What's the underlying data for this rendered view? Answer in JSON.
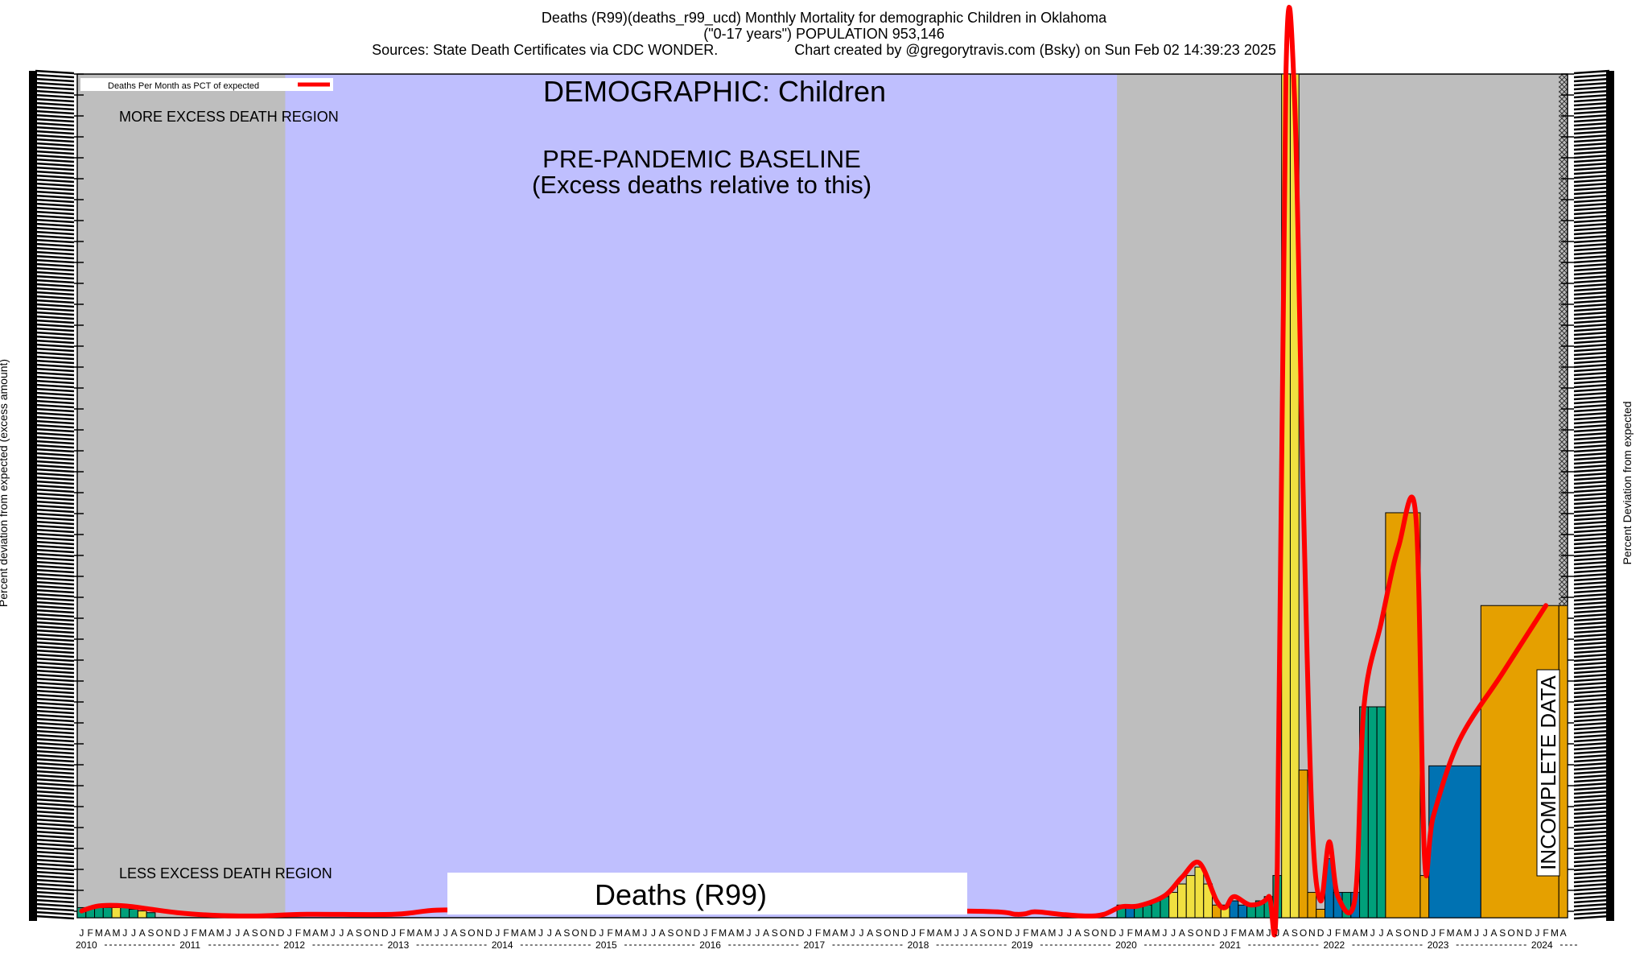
{
  "header": {
    "line1": "Deaths (R99)(deaths_r99_ucd) Monthly Mortality for demographic Children in Oklahoma",
    "line2": "(\"0-17 years\") POPULATION 953,146",
    "sources": "Sources: State Death Certificates via CDC WONDER.",
    "credit": "Chart created by @gregorytravis.com (Bsky) on Sun Feb 02 14:39:23 2025"
  },
  "labels": {
    "demographic": "DEMOGRAPHIC: Children",
    "baseline_line1": "PRE-PANDEMIC BASELINE",
    "baseline_line2": "(Excess deaths relative to this)",
    "more_region": "MORE EXCESS DEATH REGION",
    "less_region": "LESS EXCESS DEATH REGION",
    "cause_box": "Deaths (R99)",
    "incomplete": "INCOMPLETE DATA",
    "legend": "Deaths Per Month as PCT of expected",
    "ylabel_left": "Percent deviation from expected (excess amount)",
    "ylabel_right": "Percent Deviation from expected"
  },
  "colors": {
    "plot_gray": "#bebebe",
    "baseline_blue": "#bfbffe",
    "line_red": "#ff0000",
    "bar_green": "#00a07a",
    "bar_yellow": "#f0e040",
    "bar_orange": "#e5a000",
    "bar_blue": "#0072b2"
  },
  "chart_data": {
    "type": "bar",
    "x_start": "2010-01",
    "x_end": "2024-04",
    "years": [
      "2010",
      "2011",
      "2012",
      "2013",
      "2014",
      "2015",
      "2016",
      "2017",
      "2018",
      "2019",
      "2020",
      "2021",
      "2022",
      "2023",
      "2024"
    ],
    "month_letters": [
      "J",
      "F",
      "M",
      "A",
      "M",
      "J",
      "J",
      "A",
      "S",
      "O",
      "N",
      "D"
    ],
    "baseline_period": [
      "2012-01",
      "2019-12"
    ],
    "incomplete_from": "2024-04",
    "ylim": [
      0,
      100
    ],
    "bars": [
      {
        "start": "2010-01",
        "end": "2010-01",
        "value": 1.2,
        "color": "green"
      },
      {
        "start": "2010-02",
        "end": "2010-02",
        "value": 1.2,
        "color": "green"
      },
      {
        "start": "2010-03",
        "end": "2010-03",
        "value": 1.2,
        "color": "green"
      },
      {
        "start": "2010-04",
        "end": "2010-04",
        "value": 1.2,
        "color": "green"
      },
      {
        "start": "2010-05",
        "end": "2010-05",
        "value": 1.2,
        "color": "yellow"
      },
      {
        "start": "2010-06",
        "end": "2010-06",
        "value": 1.2,
        "color": "green"
      },
      {
        "start": "2010-07",
        "end": "2010-07",
        "value": 1.0,
        "color": "green"
      },
      {
        "start": "2010-08",
        "end": "2010-08",
        "value": 0.8,
        "color": "yellow"
      },
      {
        "start": "2010-09",
        "end": "2010-09",
        "value": 0.6,
        "color": "green"
      },
      {
        "start": "2020-01",
        "end": "2020-01",
        "value": 1.5,
        "color": "green"
      },
      {
        "start": "2020-02",
        "end": "2020-02",
        "value": 1.5,
        "color": "blue"
      },
      {
        "start": "2020-03",
        "end": "2020-03",
        "value": 1.5,
        "color": "green"
      },
      {
        "start": "2020-04",
        "end": "2020-04",
        "value": 1.5,
        "color": "green"
      },
      {
        "start": "2020-05",
        "end": "2020-05",
        "value": 2.0,
        "color": "green"
      },
      {
        "start": "2020-06",
        "end": "2020-06",
        "value": 2.5,
        "color": "green"
      },
      {
        "start": "2020-07",
        "end": "2020-07",
        "value": 3.0,
        "color": "yellow"
      },
      {
        "start": "2020-08",
        "end": "2020-08",
        "value": 4.0,
        "color": "yellow"
      },
      {
        "start": "2020-09",
        "end": "2020-09",
        "value": 5.0,
        "color": "yellow"
      },
      {
        "start": "2020-10",
        "end": "2020-10",
        "value": 6.0,
        "color": "yellow"
      },
      {
        "start": "2020-11",
        "end": "2020-11",
        "value": 4.0,
        "color": "yellow"
      },
      {
        "start": "2020-12",
        "end": "2020-12",
        "value": 1.5,
        "color": "orange"
      },
      {
        "start": "2021-01",
        "end": "2021-01",
        "value": 1.5,
        "color": "yellow"
      },
      {
        "start": "2021-02",
        "end": "2021-02",
        "value": 2.0,
        "color": "blue"
      },
      {
        "start": "2021-03",
        "end": "2021-03",
        "value": 1.5,
        "color": "blue"
      },
      {
        "start": "2021-04",
        "end": "2021-04",
        "value": 1.5,
        "color": "green"
      },
      {
        "start": "2021-05",
        "end": "2021-05",
        "value": 2.0,
        "color": "green"
      },
      {
        "start": "2021-06",
        "end": "2021-06",
        "value": 2.5,
        "color": "green"
      },
      {
        "start": "2021-07",
        "end": "2021-07",
        "value": 5.0,
        "color": "green"
      },
      {
        "start": "2021-08",
        "end": "2021-08",
        "value": 100,
        "color": "yellow"
      },
      {
        "start": "2021-09",
        "end": "2021-09",
        "value": 100,
        "color": "yellow"
      },
      {
        "start": "2021-10",
        "end": "2021-10",
        "value": 17.5,
        "color": "orange"
      },
      {
        "start": "2021-11",
        "end": "2021-11",
        "value": 3.0,
        "color": "orange"
      },
      {
        "start": "2021-12",
        "end": "2021-12",
        "value": 1.0,
        "color": "orange"
      },
      {
        "start": "2022-01",
        "end": "2022-01",
        "value": 7.0,
        "color": "blue"
      },
      {
        "start": "2022-02",
        "end": "2022-02",
        "value": 3.0,
        "color": "blue"
      },
      {
        "start": "2022-03",
        "end": "2022-03",
        "value": 3.0,
        "color": "green"
      },
      {
        "start": "2022-04",
        "end": "2022-04",
        "value": 3.0,
        "color": "blue"
      },
      {
        "start": "2022-05",
        "end": "2022-05",
        "value": 25.0,
        "color": "green"
      },
      {
        "start": "2022-06",
        "end": "2022-06",
        "value": 25.0,
        "color": "green"
      },
      {
        "start": "2022-07",
        "end": "2022-07",
        "value": 25.0,
        "color": "green"
      },
      {
        "start": "2022-08",
        "end": "2022-11",
        "value": 48.0,
        "color": "orange"
      },
      {
        "start": "2022-12",
        "end": "2022-12",
        "value": 5.0,
        "color": "orange"
      },
      {
        "start": "2023-01",
        "end": "2023-06",
        "value": 18.0,
        "color": "blue"
      },
      {
        "start": "2023-07",
        "end": "2024-03",
        "value": 37.0,
        "color": "orange"
      },
      {
        "start": "2024-04",
        "end": "2024-04",
        "value": 37.0,
        "color": "orange"
      }
    ],
    "line": [
      {
        "x": "2010-01",
        "y": 0.8
      },
      {
        "x": "2010-03",
        "y": 1.4
      },
      {
        "x": "2010-06",
        "y": 1.4
      },
      {
        "x": "2010-09",
        "y": 1.0
      },
      {
        "x": "2010-12",
        "y": 0.6
      },
      {
        "x": "2011-04",
        "y": 0.3
      },
      {
        "x": "2011-09",
        "y": 0.2
      },
      {
        "x": "2012-03",
        "y": 0.4
      },
      {
        "x": "2013-01",
        "y": 0.4
      },
      {
        "x": "2013-06",
        "y": 0.9
      },
      {
        "x": "2014-01",
        "y": 0.8
      },
      {
        "x": "2015-01",
        "y": 0.8
      },
      {
        "x": "2018-06",
        "y": 0.8
      },
      {
        "x": "2019-01",
        "y": 0.4
      },
      {
        "x": "2019-03",
        "y": 0.7
      },
      {
        "x": "2019-06",
        "y": 0.4
      },
      {
        "x": "2019-09",
        "y": 0.2
      },
      {
        "x": "2019-11",
        "y": 0.4
      },
      {
        "x": "2020-01",
        "y": 1.3
      },
      {
        "x": "2020-03",
        "y": 1.4
      },
      {
        "x": "2020-06",
        "y": 2.6
      },
      {
        "x": "2020-08",
        "y": 4.8
      },
      {
        "x": "2020-10",
        "y": 6.5
      },
      {
        "x": "2020-12",
        "y": 2.0
      },
      {
        "x": "2021-01",
        "y": 1.2
      },
      {
        "x": "2021-02",
        "y": 2.5
      },
      {
        "x": "2021-04",
        "y": 1.5
      },
      {
        "x": "2021-06",
        "y": 2.5
      },
      {
        "x": "2021-07",
        "y": 6.0
      },
      {
        "x": "2021-08",
        "y": 100
      },
      {
        "x": "2021-09",
        "y": 97
      },
      {
        "x": "2021-10",
        "y": 50
      },
      {
        "x": "2021-11",
        "y": 12
      },
      {
        "x": "2021-12",
        "y": 2.0
      },
      {
        "x": "2022-01",
        "y": 9.0
      },
      {
        "x": "2022-02",
        "y": 2.5
      },
      {
        "x": "2022-04",
        "y": 2.5
      },
      {
        "x": "2022-05",
        "y": 25.0
      },
      {
        "x": "2022-07",
        "y": 35.0
      },
      {
        "x": "2022-09",
        "y": 44.0
      },
      {
        "x": "2022-11",
        "y": 47.5
      },
      {
        "x": "2022-12",
        "y": 7.0
      },
      {
        "x": "2023-01",
        "y": 12.0
      },
      {
        "x": "2023-04",
        "y": 21.0
      },
      {
        "x": "2023-09",
        "y": 29.0
      },
      {
        "x": "2024-02",
        "y": 37.0
      }
    ]
  }
}
